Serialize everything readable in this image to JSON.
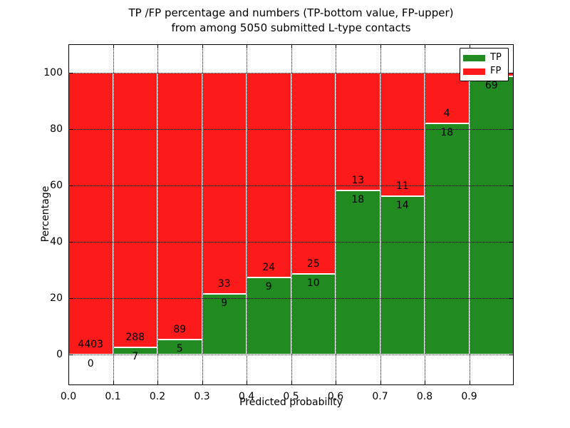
{
  "title": {
    "line1": "TP /FP percentage and numbers (TP-bottom value, FP-upper)",
    "line2": "from among 5050 submitted L-type contacts"
  },
  "chart_data": {
    "type": "bar",
    "stacked": true,
    "title": "TP /FP percentage and numbers (TP-bottom value, FP-upper) from among 5050 submitted L-type contacts",
    "xlabel": "Predicted probability",
    "ylabel": "Percentage",
    "xlim": [
      0.0,
      1.0
    ],
    "ylim": [
      -11,
      110
    ],
    "xtick_values": [
      0.0,
      0.1,
      0.2,
      0.3,
      0.4,
      0.5,
      0.6,
      0.7,
      0.8,
      0.9
    ],
    "xtick_labels": [
      "0.0",
      "0.1",
      "0.2",
      "0.3",
      "0.4",
      "0.5",
      "0.6",
      "0.7",
      "0.8",
      "0.9"
    ],
    "ytick_values": [
      0,
      20,
      40,
      60,
      80,
      100
    ],
    "ytick_labels": [
      "0",
      "20",
      "40",
      "60",
      "80",
      "100"
    ],
    "grid": true,
    "colors": {
      "tp": "#218a21",
      "fp": "#fc1a1a",
      "bar_edge": "#ffffff"
    },
    "legend": {
      "position": "upper right",
      "entries": [
        {
          "label": "TP",
          "color": "#218a21"
        },
        {
          "label": "FP",
          "color": "#fc1a1a"
        }
      ]
    },
    "bins": [
      {
        "x0": 0.0,
        "x1": 0.1,
        "tp": 0,
        "fp": 4403,
        "tp_pct": 0.0,
        "fp_pct": 100.0,
        "tp_label": "0",
        "fp_label": "4403"
      },
      {
        "x0": 0.1,
        "x1": 0.2,
        "tp": 7,
        "fp": 288,
        "tp_pct": 2.4,
        "fp_pct": 97.6,
        "tp_label": "7",
        "fp_label": "288"
      },
      {
        "x0": 0.2,
        "x1": 0.3,
        "tp": 5,
        "fp": 89,
        "tp_pct": 5.3,
        "fp_pct": 94.7,
        "tp_label": "5",
        "fp_label": "89"
      },
      {
        "x0": 0.3,
        "x1": 0.4,
        "tp": 9,
        "fp": 33,
        "tp_pct": 21.4,
        "fp_pct": 78.6,
        "tp_label": "9",
        "fp_label": "33"
      },
      {
        "x0": 0.4,
        "x1": 0.5,
        "tp": 9,
        "fp": 24,
        "tp_pct": 27.3,
        "fp_pct": 72.7,
        "tp_label": "9",
        "fp_label": "24"
      },
      {
        "x0": 0.5,
        "x1": 0.6,
        "tp": 10,
        "fp": 25,
        "tp_pct": 28.6,
        "fp_pct": 71.4,
        "tp_label": "10",
        "fp_label": "25"
      },
      {
        "x0": 0.6,
        "x1": 0.7,
        "tp": 18,
        "fp": 13,
        "tp_pct": 58.1,
        "fp_pct": 41.9,
        "tp_label": "18",
        "fp_label": "13"
      },
      {
        "x0": 0.7,
        "x1": 0.8,
        "tp": 14,
        "fp": 11,
        "tp_pct": 56.0,
        "fp_pct": 44.0,
        "tp_label": "14",
        "fp_label": "11"
      },
      {
        "x0": 0.8,
        "x1": 0.9,
        "tp": 18,
        "fp": 4,
        "tp_pct": 81.8,
        "fp_pct": 18.2,
        "tp_label": "18",
        "fp_label": "4"
      },
      {
        "x0": 0.9,
        "x1": 1.0,
        "tp": 69,
        "tp_pct": 98.6,
        "fp_pct": 1.4,
        "tp_label": "69",
        "fp_label": ""
      }
    ]
  }
}
